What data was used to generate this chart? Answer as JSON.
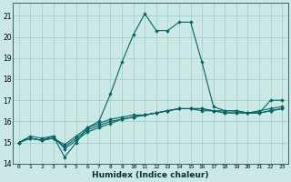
{
  "title": "",
  "xlabel": "Humidex (Indice chaleur)",
  "background_color": "#cce8e4",
  "grid_color": "#99cccc",
  "line_color": "#006666",
  "xlim": [
    -0.5,
    23.5
  ],
  "ylim": [
    14.0,
    21.6
  ],
  "yticks": [
    14,
    15,
    16,
    17,
    18,
    19,
    20,
    21
  ],
  "xticks": [
    0,
    1,
    2,
    3,
    4,
    5,
    6,
    7,
    8,
    9,
    10,
    11,
    12,
    13,
    14,
    15,
    16,
    17,
    18,
    19,
    20,
    21,
    22,
    23
  ],
  "series": [
    [
      15.0,
      15.3,
      15.2,
      15.3,
      14.3,
      15.0,
      15.7,
      16.0,
      17.3,
      18.8,
      20.1,
      21.1,
      20.3,
      20.3,
      20.7,
      20.7,
      18.8,
      16.7,
      16.5,
      16.5,
      16.4,
      16.4,
      17.0,
      17.0
    ],
    [
      15.0,
      15.2,
      15.1,
      15.3,
      14.7,
      15.1,
      15.5,
      15.7,
      15.9,
      16.1,
      16.2,
      16.3,
      16.4,
      16.5,
      16.6,
      16.6,
      16.6,
      16.5,
      16.5,
      16.5,
      16.4,
      16.5,
      16.6,
      16.7
    ],
    [
      15.0,
      15.2,
      15.1,
      15.2,
      14.8,
      15.2,
      15.6,
      15.8,
      16.0,
      16.1,
      16.2,
      16.3,
      16.4,
      16.5,
      16.6,
      16.6,
      16.6,
      16.5,
      16.4,
      16.4,
      16.4,
      16.4,
      16.5,
      16.6
    ],
    [
      15.0,
      15.2,
      15.1,
      15.2,
      14.9,
      15.3,
      15.7,
      15.9,
      16.1,
      16.2,
      16.3,
      16.3,
      16.4,
      16.5,
      16.6,
      16.6,
      16.5,
      16.5,
      16.4,
      16.4,
      16.4,
      16.4,
      16.5,
      16.6
    ]
  ]
}
